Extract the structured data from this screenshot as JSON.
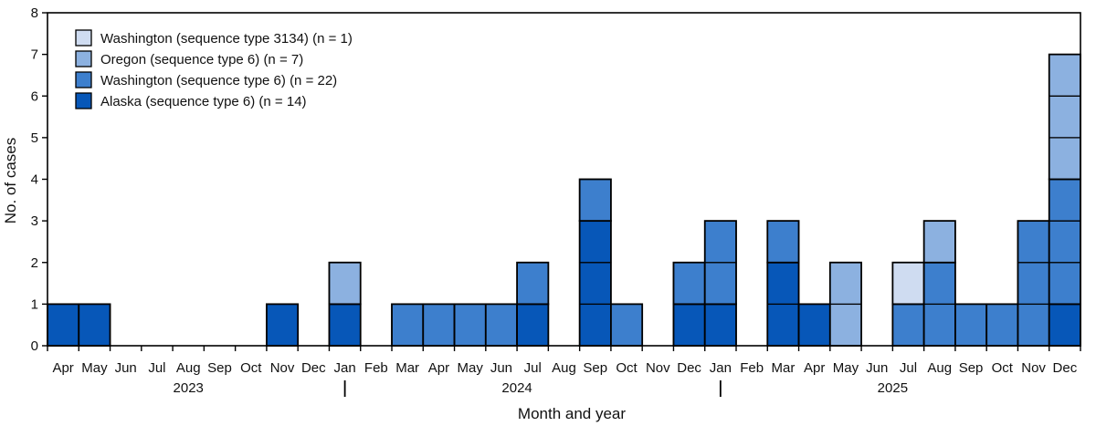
{
  "colors": {
    "washington_st3134": "#cfdcf1",
    "oregon_st6": "#8cb1e0",
    "washington_st6": "#3d7fcd",
    "alaska_st6": "#0757b8"
  },
  "chart_data": {
    "type": "bar",
    "stacked": true,
    "xlabel": "Month and year",
    "ylabel": "No. of cases",
    "ylim": [
      0,
      8
    ],
    "yticks": [
      0,
      1,
      2,
      3,
      4,
      5,
      6,
      7,
      8
    ],
    "grid": false,
    "legend_position": "top-left",
    "categories": [
      "Apr",
      "May",
      "Jun",
      "Jul",
      "Aug",
      "Sep",
      "Oct",
      "Nov",
      "Dec",
      "Jan",
      "Feb",
      "Mar",
      "Apr",
      "May",
      "Jun",
      "Jul",
      "Aug",
      "Sep",
      "Oct",
      "Nov",
      "Dec",
      "Jan",
      "Feb",
      "Mar",
      "Apr",
      "May",
      "Jun",
      "Jul",
      "Aug",
      "Sep",
      "Oct",
      "Nov",
      "Dec"
    ],
    "years": [
      {
        "label": "2023",
        "start": 0,
        "end": 8
      },
      {
        "label": "2024",
        "start": 9,
        "end": 20
      },
      {
        "label": "2025",
        "start": 21,
        "end": 32
      }
    ],
    "series": [
      {
        "name": "Alaska (sequence type 6) (n = 14)",
        "color_key": "alaska_st6",
        "values": [
          1,
          1,
          0,
          0,
          0,
          0,
          0,
          1,
          0,
          1,
          0,
          0,
          0,
          0,
          0,
          1,
          0,
          3,
          0,
          0,
          1,
          1,
          0,
          2,
          1,
          0,
          0,
          0,
          0,
          0,
          0,
          0,
          1
        ]
      },
      {
        "name": "Washington (sequence type 6) (n = 22)",
        "color_key": "washington_st6",
        "values": [
          0,
          0,
          0,
          0,
          0,
          0,
          0,
          0,
          0,
          0,
          0,
          1,
          1,
          1,
          1,
          1,
          0,
          1,
          1,
          0,
          1,
          2,
          0,
          1,
          0,
          0,
          0,
          1,
          2,
          1,
          1,
          3,
          3
        ]
      },
      {
        "name": "Oregon (sequence type 6) (n = 7)",
        "color_key": "oregon_st6",
        "values": [
          0,
          0,
          0,
          0,
          0,
          0,
          0,
          0,
          0,
          1,
          0,
          0,
          0,
          0,
          0,
          0,
          0,
          0,
          0,
          0,
          0,
          0,
          0,
          0,
          0,
          2,
          0,
          0,
          1,
          0,
          0,
          0,
          3
        ]
      },
      {
        "name": "Washington (sequence type 3134) (n = 1)",
        "color_key": "washington_st3134",
        "values": [
          0,
          0,
          0,
          0,
          0,
          0,
          0,
          0,
          0,
          0,
          0,
          0,
          0,
          0,
          0,
          0,
          0,
          0,
          0,
          0,
          0,
          0,
          0,
          0,
          0,
          0,
          0,
          1,
          0,
          0,
          0,
          0,
          0
        ]
      }
    ],
    "legend_order": [
      3,
      2,
      1,
      0
    ]
  }
}
